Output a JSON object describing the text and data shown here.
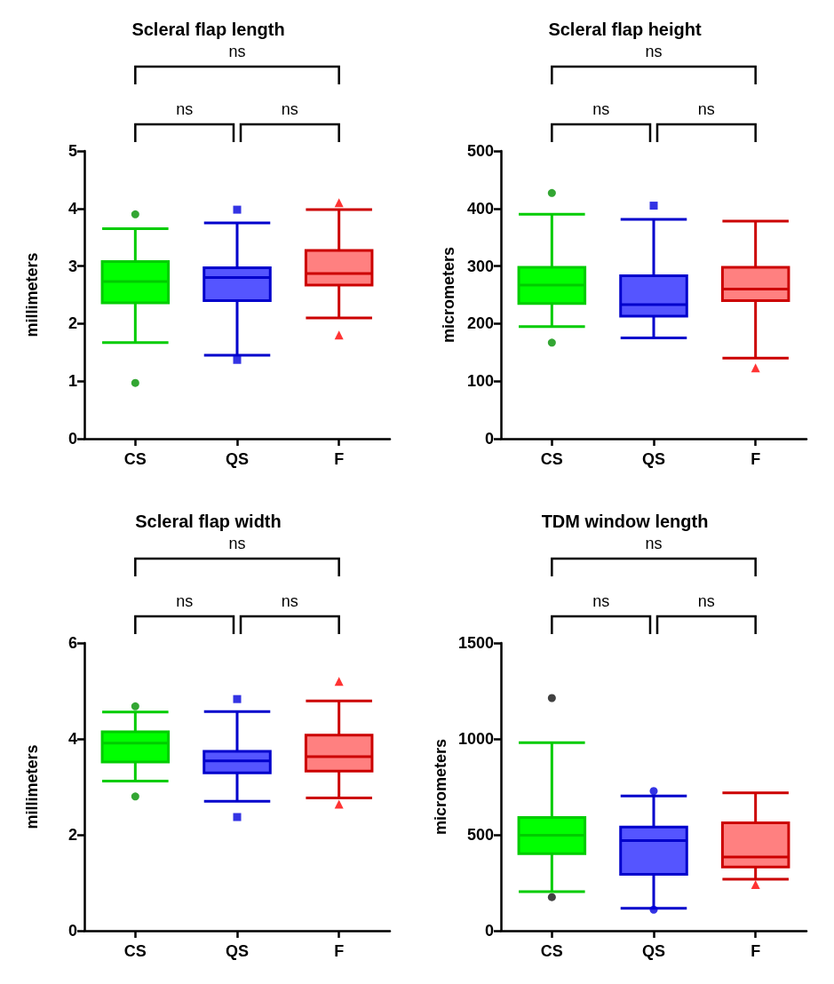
{
  "chart_data": [
    {
      "type": "box",
      "title": "Scleral flap length",
      "ylabel": "millimeters",
      "categories": [
        "CS",
        "QS",
        "F"
      ],
      "ylim": [
        0,
        5
      ],
      "yticks": [
        0,
        1,
        2,
        3,
        4,
        5
      ],
      "grid": false,
      "colors": [
        "#00ff00",
        "#5555ff",
        "#ff8080"
      ],
      "boxes": [
        {
          "low": 1.67,
          "q1": 2.36,
          "median": 2.73,
          "q3": 3.08,
          "high": 3.65
        },
        {
          "low": 1.45,
          "q1": 2.4,
          "median": 2.8,
          "q3": 2.97,
          "high": 3.75
        },
        {
          "low": 2.1,
          "q1": 2.67,
          "median": 2.87,
          "q3": 3.27,
          "high": 3.98
        }
      ],
      "series": [
        {
          "type": "scatter",
          "color": "#009000",
          "marker": "circle",
          "x": [
            "CS",
            "CS"
          ],
          "values": [
            3.9,
            0.97
          ]
        },
        {
          "type": "scatter",
          "color": "#0000dd",
          "marker": "square",
          "x": [
            "QS",
            "QS"
          ],
          "values": [
            3.98,
            1.37
          ]
        },
        {
          "type": "scatter",
          "color": "#ff0000",
          "marker": "triangle",
          "x": [
            "F",
            "F"
          ],
          "values": [
            4.1,
            1.8
          ]
        }
      ],
      "annotations": [
        "ns",
        "ns",
        "ns"
      ]
    },
    {
      "type": "box",
      "title": "Scleral flap height",
      "ylabel": "micrometers",
      "categories": [
        "CS",
        "QS",
        "F"
      ],
      "ylim": [
        0,
        500
      ],
      "yticks": [
        0,
        100,
        200,
        300,
        400,
        500
      ],
      "grid": false,
      "colors": [
        "#00ff00",
        "#5555ff",
        "#ff8080"
      ],
      "boxes": [
        {
          "low": 195,
          "q1": 235,
          "median": 267,
          "q3": 298,
          "high": 390
        },
        {
          "low": 175,
          "q1": 213,
          "median": 233,
          "q3": 283,
          "high": 381
        },
        {
          "low": 140,
          "q1": 240,
          "median": 260,
          "q3": 298,
          "high": 378
        }
      ],
      "series": [
        {
          "type": "scatter",
          "color": "#009000",
          "marker": "circle",
          "x": [
            "CS",
            "CS"
          ],
          "values": [
            427,
            167
          ]
        },
        {
          "type": "scatter",
          "color": "#0000dd",
          "marker": "square",
          "x": [
            "QS"
          ],
          "values": [
            405
          ]
        },
        {
          "type": "scatter",
          "color": "#ff0000",
          "marker": "triangle",
          "x": [
            "F"
          ],
          "values": [
            123
          ]
        }
      ],
      "annotations": [
        "ns",
        "ns",
        "ns"
      ]
    },
    {
      "type": "box",
      "title": "Scleral flap width",
      "ylabel": "millimeters",
      "categories": [
        "CS",
        "QS",
        "F"
      ],
      "ylim": [
        0,
        6
      ],
      "yticks": [
        0,
        2,
        4,
        6
      ],
      "grid": false,
      "colors": [
        "#00ff00",
        "#5555ff",
        "#ff8080"
      ],
      "boxes": [
        {
          "low": 3.12,
          "q1": 3.52,
          "median": 3.91,
          "q3": 4.15,
          "high": 4.56
        },
        {
          "low": 2.7,
          "q1": 3.29,
          "median": 3.54,
          "q3": 3.74,
          "high": 4.57
        },
        {
          "low": 2.77,
          "q1": 3.33,
          "median": 3.63,
          "q3": 4.08,
          "high": 4.79
        }
      ],
      "series": [
        {
          "type": "scatter",
          "color": "#009000",
          "marker": "circle",
          "x": [
            "CS",
            "CS"
          ],
          "values": [
            4.68,
            2.8
          ]
        },
        {
          "type": "scatter",
          "color": "#0000dd",
          "marker": "square",
          "x": [
            "QS",
            "QS"
          ],
          "values": [
            4.83,
            2.37
          ]
        },
        {
          "type": "scatter",
          "color": "#ff0000",
          "marker": "triangle",
          "x": [
            "F",
            "F"
          ],
          "values": [
            5.2,
            2.64
          ]
        }
      ],
      "annotations": [
        "ns",
        "ns",
        "ns"
      ]
    },
    {
      "type": "box",
      "title": "TDM window length",
      "ylabel": "micrometers",
      "categories": [
        "CS",
        "QS",
        "F"
      ],
      "ylim": [
        0,
        1500
      ],
      "yticks": [
        0,
        500,
        1000,
        1500
      ],
      "grid": false,
      "colors": [
        "#00ff00",
        "#5555ff",
        "#ff8080"
      ],
      "boxes": [
        {
          "low": 204,
          "q1": 402,
          "median": 498,
          "q3": 590,
          "high": 980
        },
        {
          "low": 117,
          "q1": 294,
          "median": 470,
          "q3": 540,
          "high": 703
        },
        {
          "low": 269,
          "q1": 332,
          "median": 384,
          "q3": 562,
          "high": 719
        }
      ],
      "series": [
        {
          "type": "scatter",
          "color": "#111111",
          "marker": "circle",
          "x": [
            "CS",
            "CS"
          ],
          "values": [
            1213,
            175
          ]
        },
        {
          "type": "scatter",
          "color": "#0000dd",
          "marker": "circle",
          "x": [
            "QS",
            "QS"
          ],
          "values": [
            728,
            110
          ]
        },
        {
          "type": "scatter",
          "color": "#ff0000",
          "marker": "triangle",
          "x": [
            "F"
          ],
          "values": [
            241
          ]
        }
      ],
      "annotations": [
        "ns",
        "ns",
        "ns"
      ]
    }
  ]
}
